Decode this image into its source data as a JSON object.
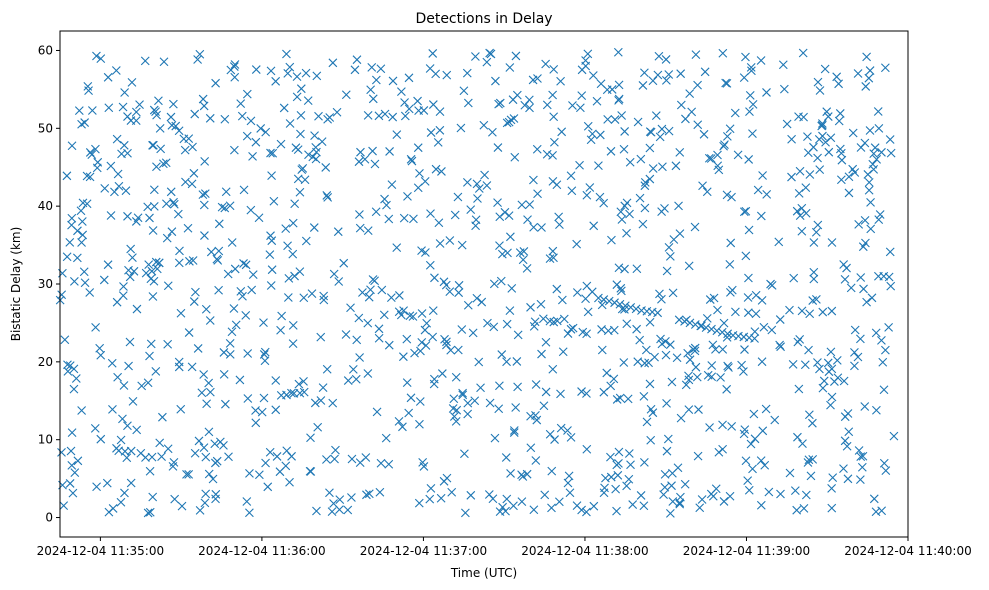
{
  "chart_data": {
    "type": "scatter",
    "title": "Detections in Delay",
    "xlabel": "Time (UTC)",
    "ylabel": "Bistatic Delay (km)",
    "marker": "x",
    "color": "#1f77b4",
    "grid": false,
    "legend": null,
    "x_ticks": [
      "2024-12-04 11:35:00",
      "2024-12-04 11:36:00",
      "2024-12-04 11:37:00",
      "2024-12-04 11:38:00",
      "2024-12-04 11:39:00",
      "2024-12-04 11:40:00"
    ],
    "y_ticks": [
      0,
      10,
      20,
      30,
      40,
      50,
      60
    ],
    "xlim": [
      "2024-12-04 11:34:45",
      "2024-12-04 11:40:00"
    ],
    "ylim": [
      -2.5,
      62.5
    ],
    "x_start": "2024-12-04 11:34:45",
    "x_end": "2024-12-04 11:39:55",
    "y_min": 0.5,
    "y_max": 59.8,
    "num_points": 1200,
    "track_points": [
      [
        "2024-12-04 11:38:05",
        28.2
      ],
      [
        "2024-12-04 11:38:07",
        28.0
      ],
      [
        "2024-12-04 11:38:09",
        27.8
      ],
      [
        "2024-12-04 11:38:11",
        27.6
      ],
      [
        "2024-12-04 11:38:13",
        27.4
      ],
      [
        "2024-12-04 11:38:15",
        27.2
      ],
      [
        "2024-12-04 11:38:17",
        27.0
      ],
      [
        "2024-12-04 11:38:19",
        26.8
      ],
      [
        "2024-12-04 11:38:21",
        26.6
      ],
      [
        "2024-12-04 11:38:23",
        26.5
      ],
      [
        "2024-12-04 11:38:25",
        26.4
      ],
      [
        "2024-12-04 11:38:27",
        26.3
      ],
      [
        "2024-12-04 11:38:35",
        25.4
      ],
      [
        "2024-12-04 11:38:37",
        25.2
      ],
      [
        "2024-12-04 11:38:39",
        25.0
      ],
      [
        "2024-12-04 11:38:41",
        24.8
      ],
      [
        "2024-12-04 11:38:43",
        24.6
      ],
      [
        "2024-12-04 11:38:45",
        24.4
      ],
      [
        "2024-12-04 11:38:47",
        24.2
      ],
      [
        "2024-12-04 11:38:49",
        24.0
      ],
      [
        "2024-12-04 11:38:51",
        23.8
      ],
      [
        "2024-12-04 11:38:53",
        23.6
      ],
      [
        "2024-12-04 11:38:55",
        23.4
      ],
      [
        "2024-12-04 11:38:57",
        23.3
      ],
      [
        "2024-12-04 11:38:59",
        23.2
      ],
      [
        "2024-12-04 11:39:01",
        23.1
      ],
      [
        "2024-12-04 11:39:03",
        23.0
      ],
      [
        "2024-12-04 11:39:49",
        31.0
      ],
      [
        "2024-12-04 11:39:51",
        31.0
      ],
      [
        "2024-12-04 11:39:53",
        30.9
      ]
    ]
  }
}
